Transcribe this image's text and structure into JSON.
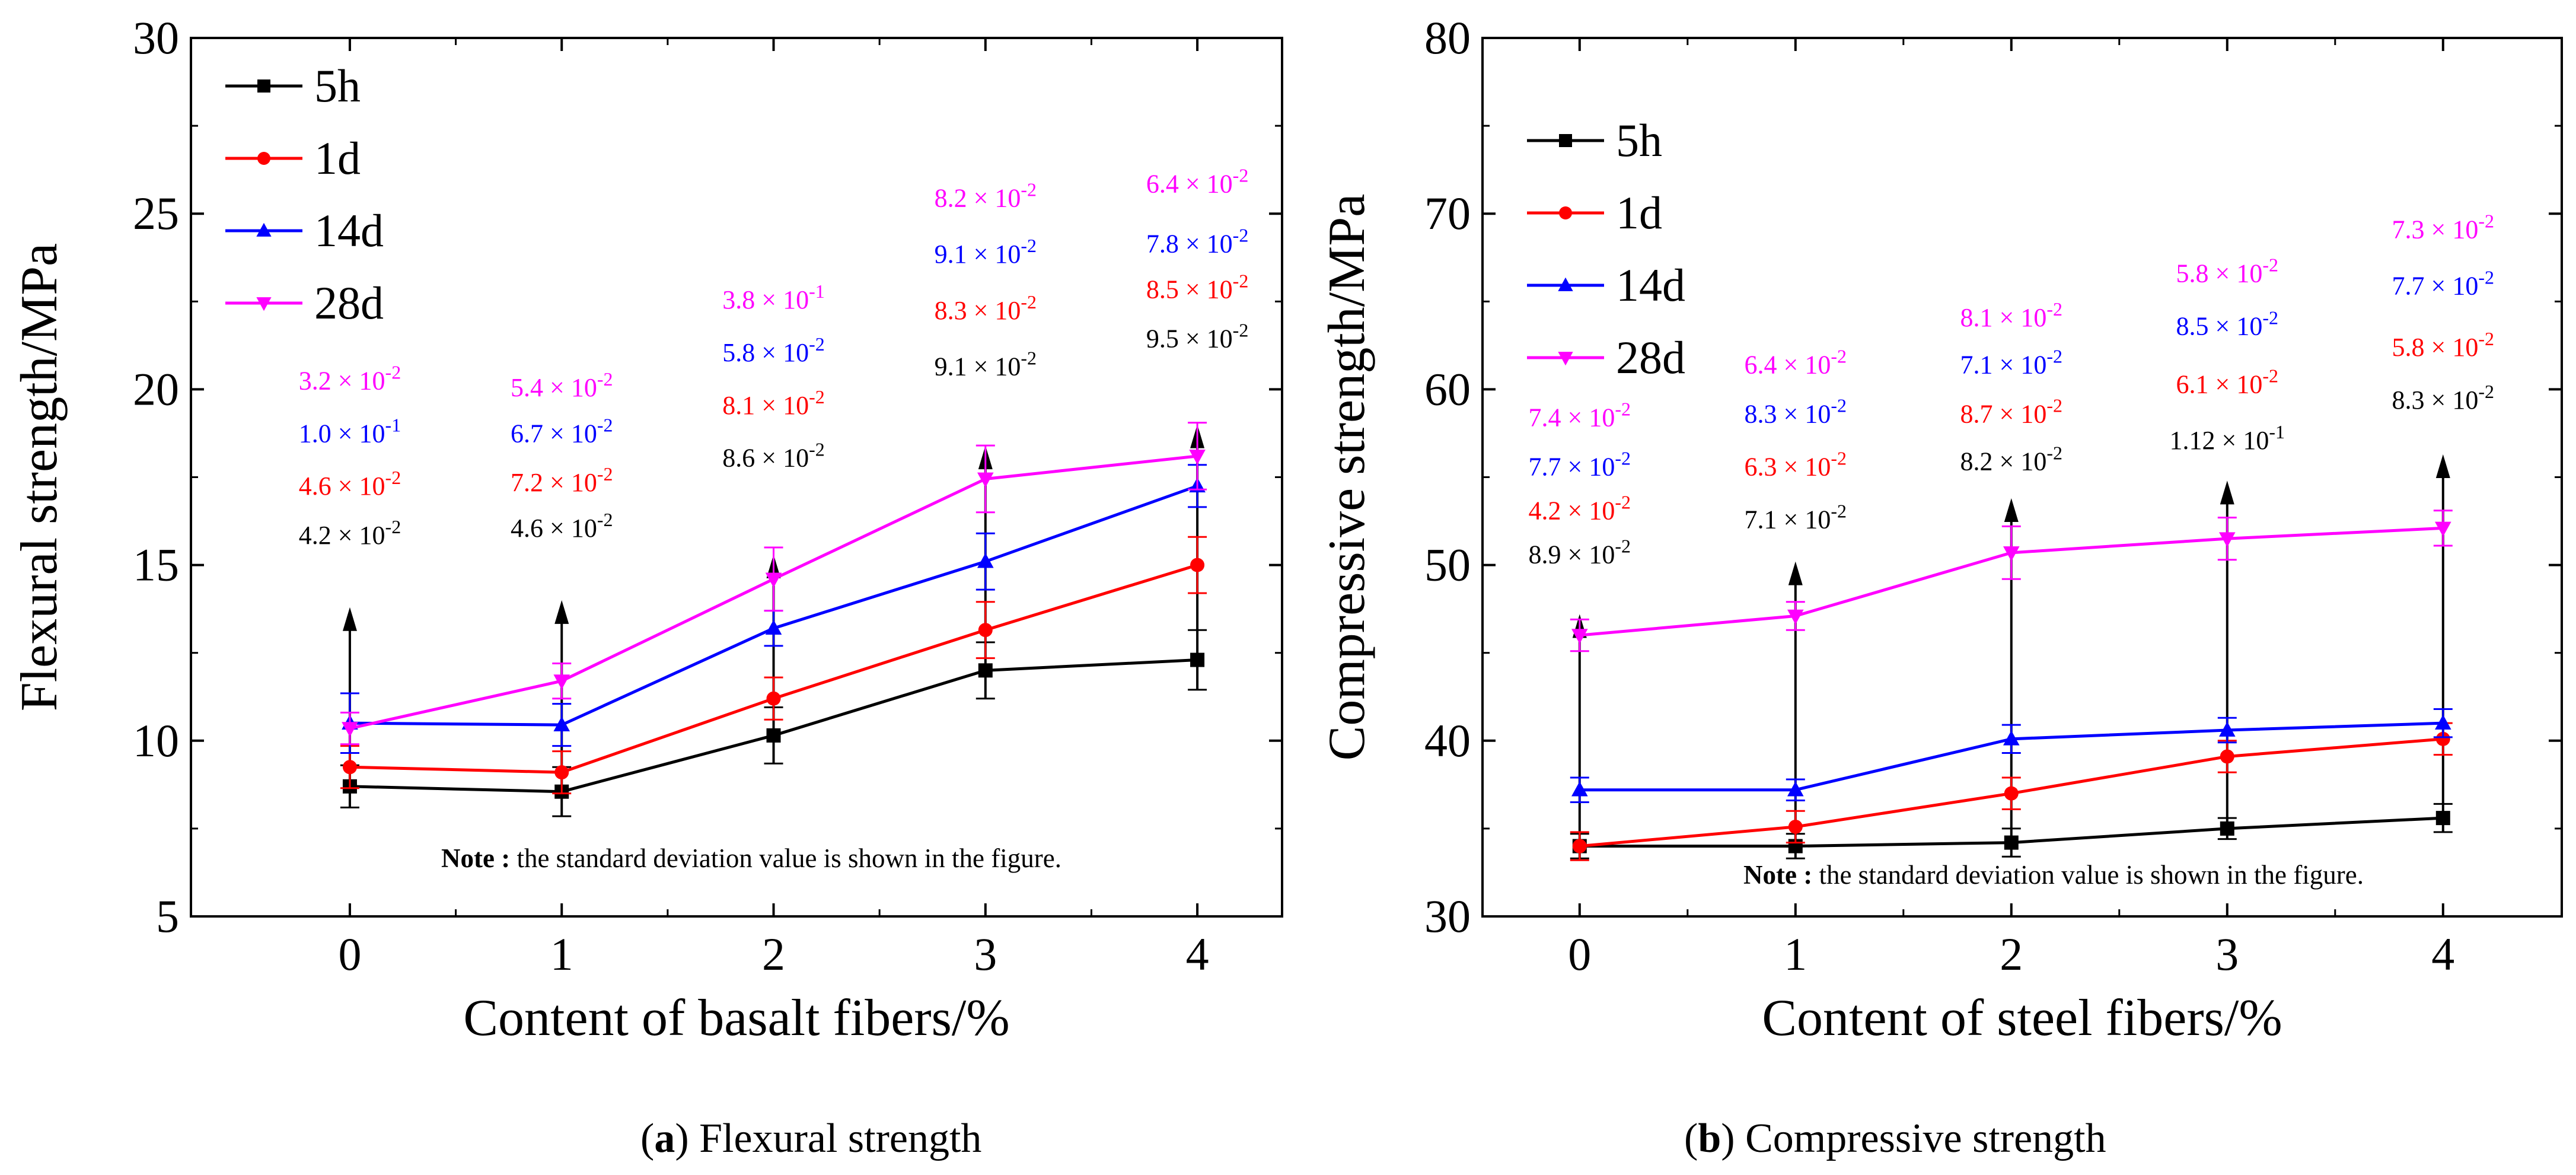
{
  "chart_data": [
    {
      "type": "line",
      "panel_id": "a",
      "caption_letter": "a",
      "caption_text": "Flexural strength",
      "xlabel": "Content of basalt fibers/%",
      "ylabel": "Flexural strength/MPa",
      "x": [
        0,
        1,
        2,
        3,
        4
      ],
      "x_ticks": [
        "0",
        "1",
        "2",
        "3",
        "4"
      ],
      "xlim": [
        -0.75,
        4.4
      ],
      "ylim": [
        5,
        30
      ],
      "y_ticks": [
        5,
        10,
        15,
        20,
        25,
        30
      ],
      "series": [
        {
          "name": "5h",
          "color": "#000000",
          "marker": "square",
          "values": [
            8.7,
            8.55,
            10.15,
            12.0,
            12.3
          ],
          "errors": [
            0.6,
            0.7,
            0.8,
            0.8,
            0.85
          ]
        },
        {
          "name": "1d",
          "color": "#ff0000",
          "marker": "circle",
          "values": [
            9.25,
            9.1,
            11.2,
            13.15,
            15.0
          ],
          "errors": [
            0.6,
            0.6,
            0.6,
            0.8,
            0.8
          ]
        },
        {
          "name": "14d",
          "color": "#0000ff",
          "marker": "triangle-up",
          "values": [
            10.5,
            10.45,
            13.2,
            15.1,
            17.25
          ],
          "errors": [
            0.85,
            0.6,
            0.5,
            0.8,
            0.6
          ]
        },
        {
          "name": "28d",
          "color": "#ff00ff",
          "marker": "triangle-down",
          "values": [
            10.35,
            11.7,
            14.6,
            17.45,
            18.1
          ],
          "errors": [
            0.45,
            0.5,
            0.9,
            0.95,
            0.95
          ]
        }
      ],
      "arrows": [
        {
          "x": 0,
          "from": 8.1,
          "to": 13.8
        },
        {
          "x": 1,
          "from": 7.85,
          "to": 14.0
        },
        {
          "x": 2,
          "from": 9.35,
          "to": 15.3
        },
        {
          "x": 3,
          "from": 11.2,
          "to": 18.4
        },
        {
          "x": 4,
          "from": 11.45,
          "to": 19.0
        }
      ],
      "annotations": [
        {
          "x": 0,
          "labels": [
            {
              "series": "28d",
              "base": "3.2 × 10",
              "exp": "-2",
              "y": 20.0
            },
            {
              "series": "14d",
              "base": "1.0 × 10",
              "exp": "-1",
              "y": 18.5
            },
            {
              "series": "1d",
              "base": "4.6 × 10",
              "exp": "-2",
              "y": 17.0
            },
            {
              "series": "5h",
              "base": "4.2  × 10",
              "exp": "-2",
              "y": 15.6
            }
          ]
        },
        {
          "x": 1,
          "labels": [
            {
              "series": "28d",
              "base": "5.4 × 10",
              "exp": "-2",
              "y": 19.8
            },
            {
              "series": "14d",
              "base": "6.7 × 10",
              "exp": "-2",
              "y": 18.5
            },
            {
              "series": "1d",
              "base": "7.2 × 10",
              "exp": "-2",
              "y": 17.1
            },
            {
              "series": "5h",
              "base": "4.6 × 10",
              "exp": "-2",
              "y": 15.8
            }
          ]
        },
        {
          "x": 2,
          "labels": [
            {
              "series": "28d",
              "base": "3.8 × 10",
              "exp": "-1",
              "y": 22.3
            },
            {
              "series": "14d",
              "base": "5.8 × 10",
              "exp": "-2",
              "y": 20.8
            },
            {
              "series": "1d",
              "base": "8.1 × 10",
              "exp": "-2",
              "y": 19.3
            },
            {
              "series": "5h",
              "base": "8.6 × 10",
              "exp": "-2",
              "y": 17.8
            }
          ]
        },
        {
          "x": 3,
          "labels": [
            {
              "series": "28d",
              "base": "8.2 × 10",
              "exp": "-2",
              "y": 25.2
            },
            {
              "series": "14d",
              "base": "9.1 × 10",
              "exp": "-2",
              "y": 23.6
            },
            {
              "series": "1d",
              "base": "8.3 × 10",
              "exp": "-2",
              "y": 22.0
            },
            {
              "series": "5h",
              "base": "9.1 × 10",
              "exp": "-2",
              "y": 20.4
            }
          ]
        },
        {
          "x": 4,
          "labels": [
            {
              "series": "28d",
              "base": "6.4 × 10",
              "exp": "-2",
              "y": 25.6
            },
            {
              "series": "14d",
              "base": "7.8 × 10",
              "exp": "-2",
              "y": 23.9
            },
            {
              "series": "1d",
              "base": "8.5 × 10",
              "exp": "-2",
              "y": 22.6
            },
            {
              "series": "5h",
              "base": "9.5 × 10",
              "exp": "-2",
              "y": 21.2
            }
          ]
        }
      ],
      "note_label": "Note :",
      "note_text": " the standard deviation value is shown in the figure.",
      "legend_position": "top-left"
    },
    {
      "type": "line",
      "panel_id": "b",
      "caption_letter": "b",
      "caption_text": "Compressive strength",
      "xlabel": "Content of steel fibers/%",
      "ylabel": "Compressive strength/MPa",
      "x": [
        0,
        1,
        2,
        3,
        4
      ],
      "x_ticks": [
        "0",
        "1",
        "2",
        "3",
        "4"
      ],
      "xlim": [
        -0.45,
        4.55
      ],
      "ylim": [
        30,
        80
      ],
      "y_ticks": [
        30,
        40,
        50,
        60,
        70,
        80
      ],
      "series": [
        {
          "name": "5h",
          "color": "#000000",
          "marker": "square",
          "values": [
            34.0,
            34.0,
            34.2,
            35.0,
            35.6
          ],
          "errors": [
            0.7,
            0.7,
            0.8,
            0.6,
            0.8
          ]
        },
        {
          "name": "1d",
          "color": "#ff0000",
          "marker": "circle",
          "values": [
            34.0,
            35.1,
            37.0,
            39.1,
            40.1
          ],
          "errors": [
            0.8,
            0.9,
            0.9,
            0.9,
            0.9
          ]
        },
        {
          "name": "14d",
          "color": "#0000ff",
          "marker": "triangle-up",
          "values": [
            37.2,
            37.2,
            40.1,
            40.6,
            41.0
          ],
          "errors": [
            0.7,
            0.6,
            0.8,
            0.7,
            0.8
          ]
        },
        {
          "name": "28d",
          "color": "#ff00ff",
          "marker": "triangle-down",
          "values": [
            46.0,
            47.1,
            50.7,
            51.5,
            52.1
          ],
          "errors": [
            0.9,
            0.8,
            1.5,
            1.2,
            1.0
          ]
        }
      ],
      "arrows": [
        {
          "x": 0,
          "from": 33.3,
          "to": 47.2
        },
        {
          "x": 1,
          "from": 33.3,
          "to": 50.2
        },
        {
          "x": 2,
          "from": 33.4,
          "to": 53.8
        },
        {
          "x": 3,
          "from": 34.4,
          "to": 54.8
        },
        {
          "x": 4,
          "from": 34.8,
          "to": 56.3
        }
      ],
      "annotations": [
        {
          "x": 0,
          "labels": [
            {
              "series": "28d",
              "base": "7.4 × 10",
              "exp": "-2",
              "y": 57.9
            },
            {
              "series": "14d",
              "base": "7.7 × 10",
              "exp": "-2",
              "y": 55.1
            },
            {
              "series": "1d",
              "base": "4.2 × 10",
              "exp": "-2",
              "y": 52.6
            },
            {
              "series": "5h",
              "base": "8.9 × 10",
              "exp": "-2",
              "y": 50.1
            }
          ]
        },
        {
          "x": 1,
          "labels": [
            {
              "series": "28d",
              "base": "6.4 × 10",
              "exp": "-2",
              "y": 60.9
            },
            {
              "series": "14d",
              "base": "8.3 × 10",
              "exp": "-2",
              "y": 58.1
            },
            {
              "series": "1d",
              "base": "6.3 × 10",
              "exp": "-2",
              "y": 55.1
            },
            {
              "series": "5h",
              "base": "7.1 × 10",
              "exp": "-2",
              "y": 52.1
            }
          ]
        },
        {
          "x": 2,
          "labels": [
            {
              "series": "28d",
              "base": "8.1 × 10",
              "exp": "-2",
              "y": 63.6
            },
            {
              "series": "14d",
              "base": "7.1 × 10",
              "exp": "-2",
              "y": 60.9
            },
            {
              "series": "1d",
              "base": "8.7 × 10",
              "exp": "-2",
              "y": 58.1
            },
            {
              "series": "5h",
              "base": "8.2 × 10",
              "exp": "-2",
              "y": 55.4
            }
          ]
        },
        {
          "x": 3,
          "labels": [
            {
              "series": "28d",
              "base": "5.8 × 10",
              "exp": "-2",
              "y": 66.1
            },
            {
              "series": "14d",
              "base": "8.5 × 10",
              "exp": "-2",
              "y": 63.1
            },
            {
              "series": "1d",
              "base": "6.1 × 10",
              "exp": "-2",
              "y": 59.8
            },
            {
              "series": "5h",
              "base": "1.12 × 10",
              "exp": "-1",
              "y": 56.6
            }
          ]
        },
        {
          "x": 4,
          "labels": [
            {
              "series": "28d",
              "base": "7.3 × 10",
              "exp": "-2",
              "y": 68.6
            },
            {
              "series": "14d",
              "base": "7.7 × 10",
              "exp": "-2",
              "y": 65.4
            },
            {
              "series": "1d",
              "base": "5.8 × 10",
              "exp": "-2",
              "y": 61.9
            },
            {
              "series": "5h",
              "base": "8.3 × 10",
              "exp": "-2",
              "y": 58.9
            }
          ]
        }
      ],
      "note_label": "Note :",
      "note_text": " the standard deviation value is shown in the figure.",
      "legend_position": "top-left"
    }
  ]
}
